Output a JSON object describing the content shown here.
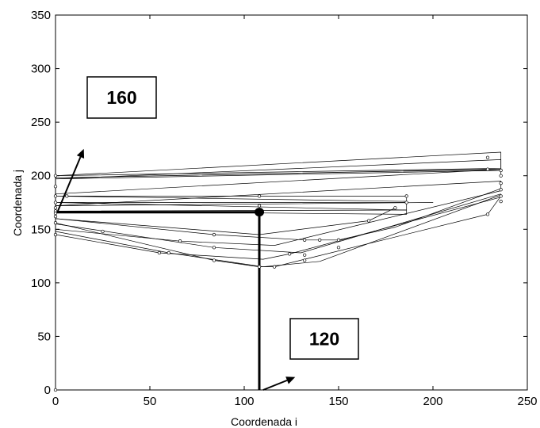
{
  "chart_data": {
    "type": "line",
    "xlabel": "Coordenada i",
    "ylabel": "Coordenada j",
    "xlim": [
      0,
      250
    ],
    "ylim": [
      0,
      350
    ],
    "xticks": [
      "0",
      "50",
      "100",
      "150",
      "200",
      "250"
    ],
    "yticks": [
      "0",
      "50",
      "100",
      "150",
      "200",
      "250",
      "300",
      "350"
    ],
    "grid": false,
    "series": [
      {
        "x": [
          0,
          236,
          236,
          0
        ],
        "y": [
          200,
          222,
          207,
          200
        ]
      },
      {
        "x": [
          0,
          236,
          236,
          0
        ],
        "y": [
          197,
          215,
          205,
          197
        ]
      },
      {
        "x": [
          0,
          229,
          236,
          0
        ],
        "y": [
          198,
          206,
          206,
          198
        ]
      },
      {
        "x": [
          0,
          186,
          186,
          0
        ],
        "y": [
          181,
          181,
          176,
          181
        ]
      },
      {
        "x": [
          0,
          186,
          186,
          0
        ],
        "y": [
          175,
          175,
          168,
          175
        ]
      },
      {
        "x": [
          0,
          200,
          200,
          0
        ],
        "y": [
          172,
          175,
          175,
          172
        ]
      },
      {
        "x": [
          0,
          186,
          186,
          0
        ],
        "y": [
          167,
          168,
          164,
          167
        ]
      },
      {
        "x": [
          0,
          236,
          236
        ],
        "y": [
          183,
          206,
          200
        ]
      },
      {
        "x": [
          0,
          236,
          236
        ],
        "y": [
          172,
          195,
          188
        ]
      },
      {
        "x": [
          0,
          84,
          132,
          150,
          180,
          236
        ],
        "y": [
          160,
          145,
          140,
          140,
          152,
          188
        ]
      },
      {
        "x": [
          0,
          108,
          166,
          180
        ],
        "y": [
          160,
          145,
          158,
          170
        ]
      },
      {
        "x": [
          0,
          84,
          130,
          236
        ],
        "y": [
          155,
          133,
          128,
          183
        ]
      },
      {
        "x": [
          0,
          66,
          116,
          236
        ],
        "y": [
          150,
          139,
          135,
          186
        ]
      },
      {
        "x": [
          0,
          55,
          110,
          124,
          236
        ],
        "y": [
          145,
          128,
          122,
          127,
          180
        ]
      },
      {
        "x": [
          0,
          60,
          110,
          140,
          236
        ],
        "y": [
          148,
          128,
          115,
          120,
          182
        ]
      },
      {
        "x": [
          0,
          84,
          108,
          116,
          132,
          229,
          236
        ],
        "y": [
          156,
          121,
          115,
          115,
          122,
          164,
          181
        ]
      },
      {
        "x": [
          0,
          108
        ],
        "y": [
          166,
          166
        ]
      },
      {
        "x": [
          108,
          108
        ],
        "y": [
          166,
          0
        ]
      }
    ],
    "point_groups": [
      {
        "x": [
          0,
          0,
          0,
          0,
          0,
          0,
          0,
          0,
          0,
          0,
          0,
          6
        ],
        "y": [
          200,
          190,
          181,
          175,
          170,
          167,
          165,
          162,
          156,
          145,
          0,
          181
        ]
      },
      {
        "x": [
          108,
          108,
          186,
          186,
          229,
          229,
          236,
          236,
          236,
          236,
          236,
          236
        ],
        "y": [
          181,
          172,
          181,
          175,
          217,
          206,
          205,
          200,
          193,
          187,
          181,
          176
        ]
      },
      {
        "x": [
          25,
          55,
          60,
          66,
          84,
          84,
          84,
          108,
          116,
          124,
          132,
          132,
          132,
          140,
          150,
          150,
          166,
          180,
          229
        ],
        "y": [
          148,
          128,
          128,
          139,
          145,
          133,
          121,
          115,
          115,
          127,
          140,
          126,
          121,
          140,
          140,
          133,
          158,
          170,
          164
        ]
      }
    ],
    "annotations": [
      {
        "label": "160",
        "arrow_from": [
          1,
          166
        ],
        "arrow_to": [
          15,
          225
        ]
      },
      {
        "label": "120",
        "arrow_from": [
          110,
          0
        ],
        "arrow_to": [
          127,
          12
        ]
      }
    ],
    "highlight_point": {
      "x": 108,
      "y": 166
    }
  }
}
